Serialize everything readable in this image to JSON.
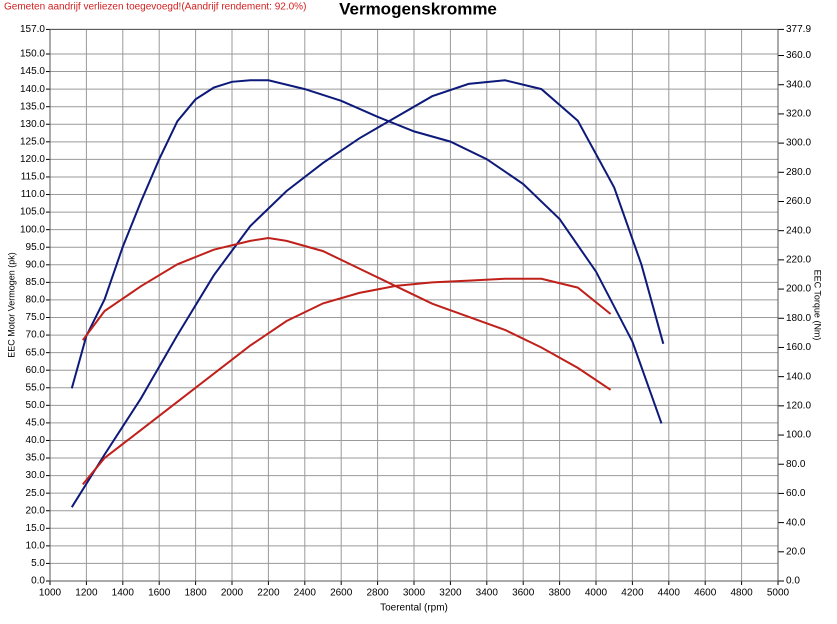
{
  "chart_data": {
    "type": "line",
    "title": "Vermogenskromme",
    "note": "Gemeten aandrijf verliezen toegevoegd!(Aandrijf rendement: 92.0%)",
    "xlabel": "Toerental (rpm)",
    "ylabel": "EEC Motor Vermogen (pk)",
    "y2label": "EEC Torque (Nm)",
    "grid": true,
    "xlim": [
      1000,
      5000
    ],
    "xticks": [
      1000,
      1200,
      1400,
      1600,
      1800,
      2000,
      2200,
      2400,
      2600,
      2800,
      3000,
      3200,
      3400,
      3600,
      3800,
      4000,
      4200,
      4400,
      4600,
      4800,
      5000
    ],
    "ylim": [
      0,
      157
    ],
    "yticks": [
      {
        "value": 0,
        "label": "0.0"
      },
      {
        "value": 5,
        "label": "5.0"
      },
      {
        "value": 10,
        "label": "10.0"
      },
      {
        "value": 15,
        "label": "15.0"
      },
      {
        "value": 20,
        "label": "20.0"
      },
      {
        "value": 25,
        "label": "25.0"
      },
      {
        "value": 30,
        "label": "30.0"
      },
      {
        "value": 35,
        "label": "35.0"
      },
      {
        "value": 40,
        "label": "40.0"
      },
      {
        "value": 45,
        "label": "45.0"
      },
      {
        "value": 50,
        "label": "50.0"
      },
      {
        "value": 55,
        "label": "55.0"
      },
      {
        "value": 60,
        "label": "60.0"
      },
      {
        "value": 65,
        "label": "65.0"
      },
      {
        "value": 70,
        "label": "70.0"
      },
      {
        "value": 75,
        "label": "75.0"
      },
      {
        "value": 80,
        "label": "80.0"
      },
      {
        "value": 85,
        "label": "85.0"
      },
      {
        "value": 90,
        "label": "90.0"
      },
      {
        "value": 95,
        "label": "95.0"
      },
      {
        "value": 100,
        "label": "100.0"
      },
      {
        "value": 105,
        "label": "105.0"
      },
      {
        "value": 110,
        "label": "110.0"
      },
      {
        "value": 115,
        "label": "115.0"
      },
      {
        "value": 120,
        "label": "120.0"
      },
      {
        "value": 125,
        "label": "125.0"
      },
      {
        "value": 130,
        "label": "130.0"
      },
      {
        "value": 135,
        "label": "135.0"
      },
      {
        "value": 140,
        "label": "140.0"
      },
      {
        "value": 145,
        "label": "145.0"
      },
      {
        "value": 150,
        "label": "150.0"
      },
      {
        "value": 157,
        "label": "157.0"
      }
    ],
    "y2lim": [
      0,
      377.9
    ],
    "y2ticks": [
      {
        "value": 0,
        "label": "0.0"
      },
      {
        "value": 20,
        "label": "20.0"
      },
      {
        "value": 40,
        "label": "40.0"
      },
      {
        "value": 60,
        "label": "60.0"
      },
      {
        "value": 80,
        "label": "80.0"
      },
      {
        "value": 100,
        "label": "100.0"
      },
      {
        "value": 120,
        "label": "120.0"
      },
      {
        "value": 140,
        "label": "140.0"
      },
      {
        "value": 160,
        "label": "160.0"
      },
      {
        "value": 180,
        "label": "180.0"
      },
      {
        "value": 200,
        "label": "200.0"
      },
      {
        "value": 220,
        "label": "220.0"
      },
      {
        "value": 240,
        "label": "240.0"
      },
      {
        "value": 260,
        "label": "260.0"
      },
      {
        "value": 280,
        "label": "280.0"
      },
      {
        "value": 300,
        "label": "300.0"
      },
      {
        "value": 320,
        "label": "320.0"
      },
      {
        "value": 340,
        "label": "340.0"
      },
      {
        "value": 360,
        "label": "360.0"
      },
      377.9
    ],
    "series": [
      {
        "color": "#0d1a7a",
        "x": [
          1120,
          1300,
          1500,
          1700,
          1900,
          2100,
          2300,
          2500,
          2700,
          2900,
          3100,
          3300,
          3500,
          3700,
          3900,
          4100,
          4250,
          4370
        ],
        "values": [
          21,
          36,
          52,
          70,
          87,
          101,
          111,
          119,
          126,
          132,
          138,
          141.5,
          142.5,
          140,
          131,
          112,
          90,
          67.5
        ]
      },
      {
        "color": "#0d1a7a",
        "axis": "y2",
        "x": [
          1120,
          1200,
          1300,
          1400,
          1500,
          1600,
          1700,
          1800,
          1900,
          2000,
          2100,
          2200,
          2400,
          2600,
          2800,
          3000,
          3200,
          3400,
          3600,
          3800,
          4000,
          4200,
          4360
        ],
        "values": [
          132,
          168,
          193,
          229,
          260,
          289,
          315,
          330,
          338,
          342,
          343,
          343,
          337,
          329,
          318,
          308,
          301,
          289,
          272,
          248,
          212,
          164,
          108
        ]
      },
      {
        "color": "#c0201a",
        "x": [
          1180,
          1300,
          1500,
          1700,
          1900,
          2100,
          2300,
          2500,
          2700,
          2900,
          3100,
          3300,
          3500,
          3700,
          3900,
          4080
        ],
        "values": [
          27.5,
          35,
          43,
          51,
          59,
          67,
          74,
          79,
          82,
          84,
          85,
          85.5,
          86,
          86,
          83.5,
          76
        ]
      },
      {
        "color": "#c0201a",
        "axis": "y2",
        "x": [
          1180,
          1300,
          1500,
          1700,
          1900,
          2100,
          2200,
          2300,
          2500,
          2700,
          2900,
          3100,
          3300,
          3500,
          3700,
          3900,
          4080
        ],
        "values": [
          165,
          185,
          202,
          217,
          227,
          233,
          235,
          233,
          226,
          214,
          202,
          190,
          181,
          172,
          160,
          146,
          131
        ]
      }
    ]
  }
}
